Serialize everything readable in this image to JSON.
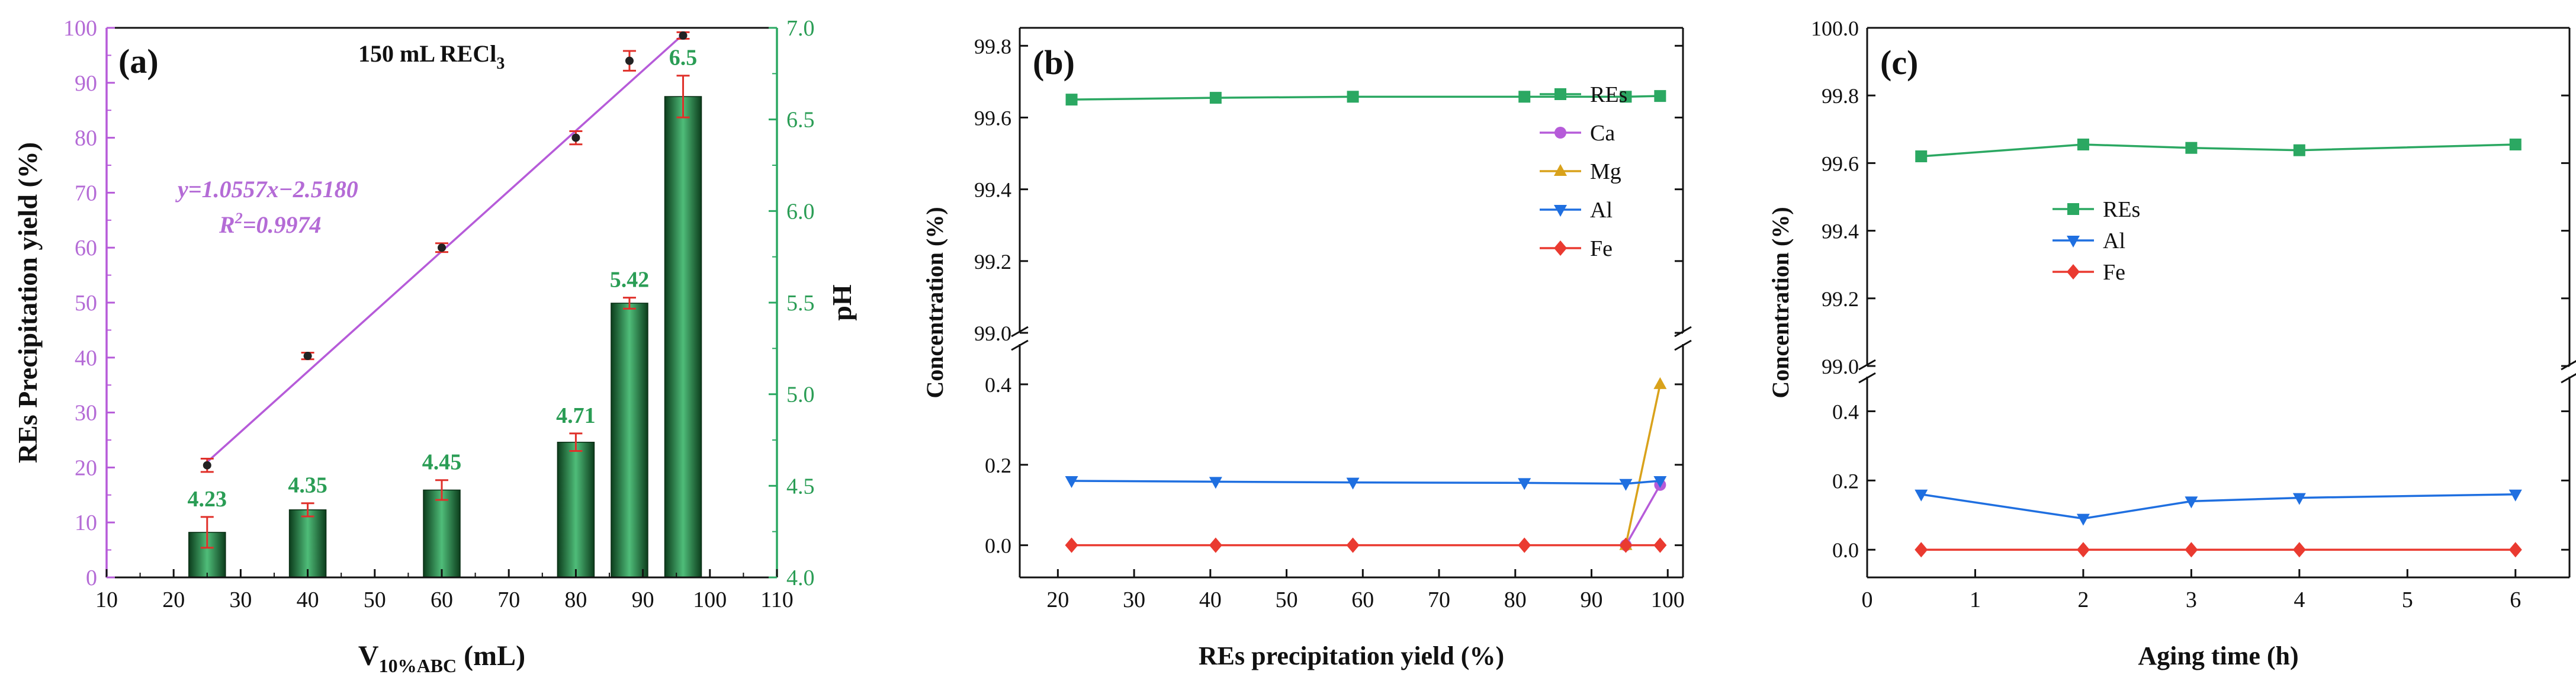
{
  "colors": {
    "green": "#2ba862",
    "green_text": "#2a9d55",
    "purple": "#b65bd9",
    "purple_text": "#b46bd6",
    "orange": "#d9a21b",
    "blue": "#1f6fe0",
    "red": "#ea3a30",
    "bar_dark": "#0c3d1c",
    "bar_light": "#4fbd79",
    "err_red": "#e0302a",
    "axis": "#111111"
  },
  "chart_data": [
    {
      "type": "bar+line",
      "panel_label": "(a)",
      "annotation": "150 mL RECl",
      "annotation_sub": "3",
      "xlabel_main": "V",
      "xlabel_sub": "10%ABC",
      "xlabel_unit": " (mL)",
      "ylabel": "REs Precipitation yield (%)",
      "y2label": "pH",
      "xlim": [
        10,
        110
      ],
      "ylim": [
        0,
        100
      ],
      "y2lim": [
        4.0,
        7.0
      ],
      "xticks": [
        "10",
        "20",
        "30",
        "40",
        "50",
        "60",
        "70",
        "80",
        "90",
        "100",
        "110"
      ],
      "yticks": [
        "0",
        "10",
        "20",
        "30",
        "40",
        "50",
        "60",
        "70",
        "80",
        "90",
        "100"
      ],
      "y2ticks": [
        "4.0",
        "4.5",
        "5.0",
        "5.5",
        "6.0",
        "6.5",
        "7.0"
      ],
      "bars": {
        "x": [
          25,
          40,
          60,
          80,
          88,
          96
        ],
        "ph": [
          4.23,
          4.35,
          4.45,
          4.71,
          5.42,
          6.5
        ],
        "labels": [
          "4.23",
          "4.35",
          "4.45",
          "4.71",
          "5.42",
          "6.5"
        ],
        "height_pct": [
          8.2,
          12.3,
          15.9,
          24.6,
          49.9,
          87.5
        ],
        "err": [
          2.8,
          1.2,
          1.8,
          1.6,
          1.0,
          3.8
        ]
      },
      "scatter": {
        "x": [
          25,
          40,
          60,
          80,
          88,
          96
        ],
        "y": [
          20.4,
          40.3,
          60.0,
          80.0,
          94.0,
          98.6
        ],
        "err": [
          1.2,
          0.6,
          0.8,
          1.2,
          1.8,
          0.6
        ]
      },
      "fit": {
        "x": [
          25,
          96
        ],
        "y": [
          21.0,
          98.8
        ],
        "equation": "y=1.0557x−2.5180",
        "r2_prefix": "R",
        "r2_sup": "2",
        "r2_value": "=0.9974"
      }
    },
    {
      "type": "line",
      "panel_label": "(b)",
      "xlabel": "REs precipitation yield (%)",
      "ylabel": "Concentration (%)",
      "xlim": [
        15,
        102
      ],
      "xticks": [
        "20",
        "30",
        "40",
        "50",
        "60",
        "70",
        "80",
        "90",
        "100"
      ],
      "top_ylim": [
        99.0,
        99.85
      ],
      "top_yticks": [
        "99.0",
        "99.2",
        "99.4",
        "99.6",
        "99.8"
      ],
      "bottom_ylim": [
        -0.08,
        0.5
      ],
      "bottom_yticks": [
        "0.0",
        "0.2",
        "0.4"
      ],
      "legend": [
        "REs",
        "Ca",
        "Mg",
        "Al",
        "Fe"
      ],
      "series": [
        {
          "name": "REs",
          "x": [
            21.8,
            40.7,
            58.7,
            81.2,
            94.5,
            99.0
          ],
          "y": [
            99.65,
            99.655,
            99.658,
            99.658,
            99.658,
            99.66
          ]
        },
        {
          "name": "Ca",
          "x": [
            94.5,
            99.0
          ],
          "y": [
            0.0,
            0.15
          ]
        },
        {
          "name": "Mg",
          "x": [
            94.5,
            99.0
          ],
          "y": [
            0.0,
            0.4
          ]
        },
        {
          "name": "Al",
          "x": [
            21.8,
            40.7,
            58.7,
            81.2,
            94.5,
            99.0
          ],
          "y": [
            0.16,
            0.158,
            0.156,
            0.155,
            0.153,
            0.16
          ]
        },
        {
          "name": "Fe",
          "x": [
            21.8,
            40.7,
            58.7,
            81.2,
            94.5,
            99.0
          ],
          "y": [
            0.0,
            0.0,
            0.0,
            0.0,
            0.0,
            0.0
          ]
        }
      ]
    },
    {
      "type": "line",
      "panel_label": "(c)",
      "xlabel": "Aging time (h)",
      "ylabel": "Concentration (%)",
      "xlim": [
        0,
        6.5
      ],
      "xticks": [
        "0",
        "1",
        "2",
        "3",
        "4",
        "5",
        "6"
      ],
      "top_ylim": [
        99.0,
        100.0
      ],
      "top_yticks": [
        "99.0",
        "99.2",
        "99.4",
        "99.6",
        "99.8",
        "100.0"
      ],
      "bottom_ylim": [
        -0.08,
        0.5
      ],
      "bottom_yticks": [
        "0.0",
        "0.2",
        "0.4"
      ],
      "legend": [
        "REs",
        "Al",
        "Fe"
      ],
      "series": [
        {
          "name": "REs",
          "x": [
            0.5,
            2,
            3,
            4,
            6
          ],
          "y": [
            99.62,
            99.655,
            99.645,
            99.638,
            99.655
          ]
        },
        {
          "name": "Al",
          "x": [
            0.5,
            2,
            3,
            4,
            6
          ],
          "y": [
            0.16,
            0.09,
            0.14,
            0.15,
            0.16
          ]
        },
        {
          "name": "Fe",
          "x": [
            0.5,
            2,
            3,
            4,
            6
          ],
          "y": [
            0.0,
            0.0,
            0.0,
            0.0,
            0.0
          ]
        }
      ]
    }
  ]
}
